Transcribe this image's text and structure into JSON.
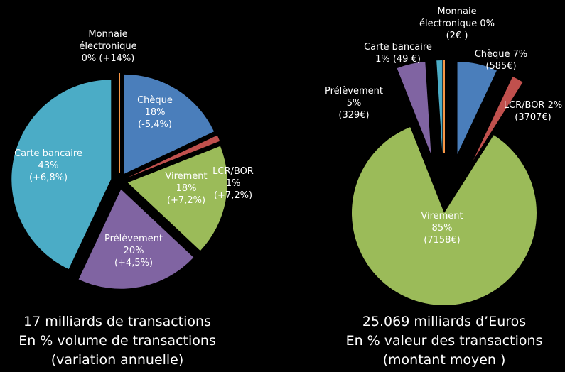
{
  "chart_data": [
    {
      "type": "pie",
      "categories": [
        "Chèque",
        "LCR/BOR",
        "Virement",
        "Prélèvement",
        "Carte bancaire",
        "Monnaie électronique"
      ],
      "values": [
        18,
        1,
        18,
        20,
        43,
        0
      ],
      "value_labels": [
        "18%",
        "1%",
        "18%",
        "20%",
        "43%",
        "0%"
      ],
      "details": [
        "(-5,4%)",
        "(+7,2%)",
        "(+7,2%)",
        "(+4,5%)",
        "(+6,8%)",
        "(+14%)"
      ],
      "colors": [
        "#4a7ebb",
        "#c0504d",
        "#9bbb59",
        "#8064a2",
        "#4bacc6",
        "#f79646"
      ],
      "caption": [
        "17 milliards de transactions",
        "En % volume de transactions",
        "(variation annuelle)"
      ]
    },
    {
      "type": "pie",
      "categories": [
        "Chèque",
        "LCR/BOR",
        "Virement",
        "Prélèvement",
        "Carte bancaire",
        "Monnaie électronique"
      ],
      "values": [
        7,
        2,
        85,
        5,
        1,
        0
      ],
      "value_labels": [
        "7%",
        "2%",
        "85%",
        "5%",
        "1%",
        "0%"
      ],
      "details": [
        "(585€)",
        "(3707€)",
        "(7158€)",
        "(329€)",
        "(49 €)",
        "(2€ )"
      ],
      "colors": [
        "#4a7ebb",
        "#c0504d",
        "#9bbb59",
        "#8064a2",
        "#4bacc6",
        "#f79646"
      ],
      "caption": [
        "25.069 milliards d’Euros",
        "En % valeur des transactions",
        "(montant moyen )"
      ]
    }
  ]
}
